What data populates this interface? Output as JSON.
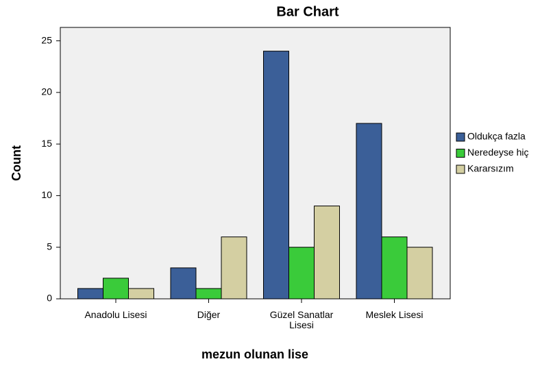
{
  "chart_data": {
    "type": "bar",
    "title": "Bar Chart",
    "x_label": "mezun olunan lise",
    "y_label": "Count",
    "categories": [
      "Anadolu Lisesi",
      "Diğer",
      "Güzel Sanatlar Lisesi",
      "Meslek Lisesi"
    ],
    "series": [
      {
        "name": "Oldukça fazla",
        "color": "#3b5f98",
        "values": [
          1,
          3,
          24,
          17
        ]
      },
      {
        "name": "Neredeyse hiç",
        "color": "#3acb3a",
        "values": [
          2,
          1,
          5,
          6
        ]
      },
      {
        "name": "Kararsızım",
        "color": "#d4cfa2",
        "values": [
          1,
          6,
          9,
          5
        ]
      }
    ],
    "ylim": [
      0,
      26.3
    ],
    "yticks": [
      0,
      5,
      10,
      15,
      20,
      25
    ],
    "legend": "right"
  }
}
